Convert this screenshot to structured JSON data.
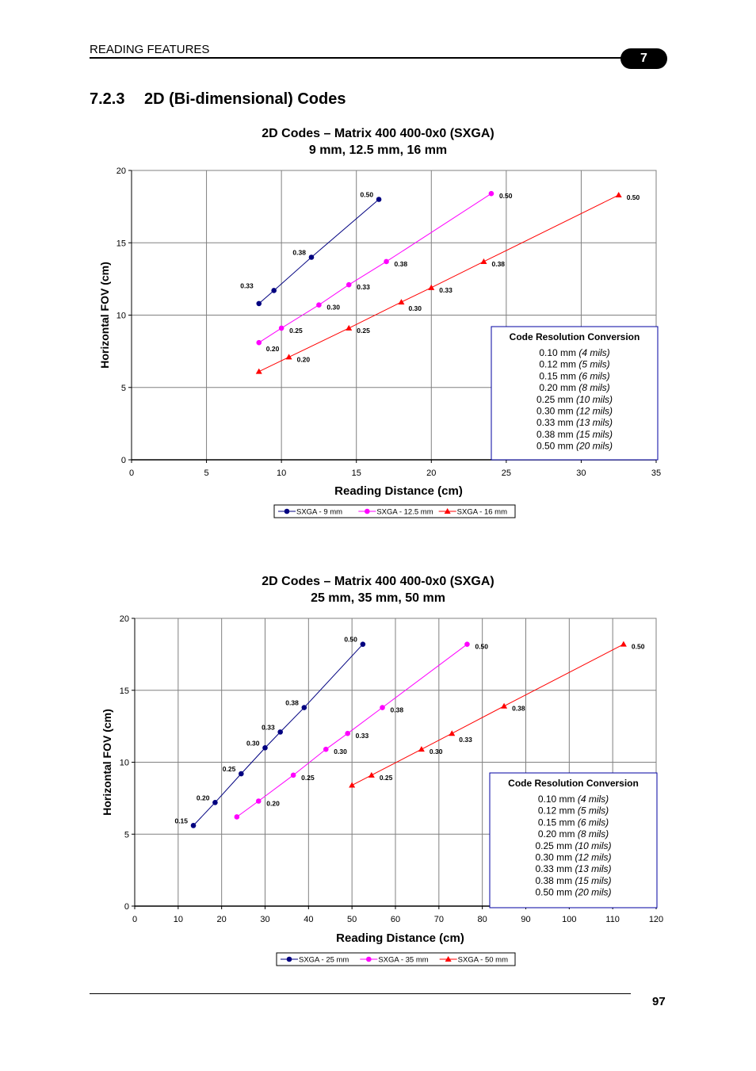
{
  "header": {
    "section": "READING FEATURES",
    "chapter": "7"
  },
  "section": {
    "number": "7.2.3",
    "title": "2D (Bi-dimensional) Codes"
  },
  "footer": {
    "page": "97"
  },
  "chart_data": [
    {
      "type": "line",
      "title": "2D Codes – Matrix 400 400-0x0 (SXGA)",
      "subtitle": "9 mm, 12.5 mm, 16 mm",
      "xlabel": "Reading Distance (cm)",
      "ylabel": "Horizontal FOV (cm)",
      "xlim": [
        0,
        35
      ],
      "ylim": [
        0,
        20
      ],
      "xticks": [
        0,
        5,
        10,
        15,
        20,
        25,
        30,
        35
      ],
      "yticks": [
        0,
        5,
        10,
        15,
        20
      ],
      "grid": true,
      "legend": "bottom",
      "series": [
        {
          "name": "SXGA - 9 mm",
          "color": "#000080",
          "marker": "circle",
          "points": [
            [
              8.5,
              10.8
            ],
            [
              9.5,
              11.7
            ],
            [
              12,
              14
            ],
            [
              16.5,
              18
            ]
          ],
          "labels": [
            {
              "text": "0.33",
              "x": 8.5,
              "y": 11.7,
              "pos": "left"
            },
            {
              "text": "0.38",
              "x": 12,
              "y": 14,
              "pos": "left"
            },
            {
              "text": "0.50",
              "x": 16.5,
              "y": 18,
              "pos": "left"
            }
          ]
        },
        {
          "name": "SXGA - 12.5 mm",
          "color": "#ff00ff",
          "marker": "circle",
          "points": [
            [
              8.5,
              8.1
            ],
            [
              10,
              9.1
            ],
            [
              12.5,
              10.7
            ],
            [
              14.5,
              12.1
            ],
            [
              17,
              13.7
            ],
            [
              24,
              18.4
            ]
          ],
          "labels": [
            {
              "text": "0.20",
              "x": 8.5,
              "y": 8.1,
              "pos": "below-right"
            },
            {
              "text": "0.25",
              "x": 10,
              "y": 9.1,
              "pos": "right"
            },
            {
              "text": "0.30",
              "x": 12.5,
              "y": 10.7,
              "pos": "right"
            },
            {
              "text": "0.33",
              "x": 14.5,
              "y": 12.1,
              "pos": "right"
            },
            {
              "text": "0.38",
              "x": 17,
              "y": 13.7,
              "pos": "right"
            },
            {
              "text": "0.50",
              "x": 24,
              "y": 18.4,
              "pos": "right"
            }
          ]
        },
        {
          "name": "SXGA - 16 mm",
          "color": "#ff0000",
          "marker": "triangle",
          "points": [
            [
              8.5,
              6.1
            ],
            [
              10.5,
              7.1
            ],
            [
              14.5,
              9.1
            ],
            [
              18,
              10.9
            ],
            [
              20,
              11.9
            ],
            [
              23.5,
              13.7
            ],
            [
              32.5,
              18.3
            ]
          ],
          "labels": [
            {
              "text": "0.20",
              "x": 10.5,
              "y": 7.1,
              "pos": "right"
            },
            {
              "text": "0.25",
              "x": 14.5,
              "y": 9.1,
              "pos": "right"
            },
            {
              "text": "0.30",
              "x": 18,
              "y": 10.9,
              "pos": "below-right"
            },
            {
              "text": "0.33",
              "x": 20,
              "y": 11.9,
              "pos": "right"
            },
            {
              "text": "0.38",
              "x": 23.5,
              "y": 13.7,
              "pos": "right"
            },
            {
              "text": "0.50",
              "x": 32.5,
              "y": 18.3,
              "pos": "right"
            }
          ]
        }
      ],
      "conversion_box": {
        "title": "Code Resolution Conversion",
        "rows": [
          {
            "mm": "0.10 mm",
            "mils": "(4 mils)"
          },
          {
            "mm": "0.12 mm",
            "mils": "(5 mils)"
          },
          {
            "mm": "0.15 mm",
            "mils": "(6 mils)"
          },
          {
            "mm": "0.20 mm",
            "mils": "(8 mils)"
          },
          {
            "mm": "0.25 mm",
            "mils": "(10 mils)"
          },
          {
            "mm": "0.30 mm",
            "mils": "(12 mils)"
          },
          {
            "mm": "0.33 mm",
            "mils": "(13 mils)"
          },
          {
            "mm": "0.38 mm",
            "mils": "(15 mils)"
          },
          {
            "mm": "0.50 mm",
            "mils": "(20 mils)"
          }
        ]
      }
    },
    {
      "type": "line",
      "title": "2D Codes – Matrix 400 400-0x0 (SXGA)",
      "subtitle": "25 mm, 35 mm, 50 mm",
      "xlabel": "Reading Distance (cm)",
      "ylabel": "Horizontal FOV (cm)",
      "xlim": [
        0,
        120
      ],
      "ylim": [
        0,
        20
      ],
      "xticks": [
        0,
        10,
        20,
        30,
        40,
        50,
        60,
        70,
        80,
        90,
        100,
        110,
        120
      ],
      "yticks": [
        0,
        5,
        10,
        15,
        20
      ],
      "grid": true,
      "legend": "bottom",
      "series": [
        {
          "name": "SXGA - 25 mm",
          "color": "#000080",
          "marker": "circle",
          "points": [
            [
              13.5,
              5.6
            ],
            [
              18.5,
              7.2
            ],
            [
              24.5,
              9.2
            ],
            [
              30,
              11
            ],
            [
              33.5,
              12.1
            ],
            [
              39,
              13.8
            ],
            [
              52.5,
              18.2
            ]
          ],
          "labels": [
            {
              "text": "0.15",
              "x": 13.5,
              "y": 5.6,
              "pos": "left"
            },
            {
              "text": "0.20",
              "x": 18.5,
              "y": 7.2,
              "pos": "left"
            },
            {
              "text": "0.25",
              "x": 24.5,
              "y": 9.2,
              "pos": "left"
            },
            {
              "text": "0.30",
              "x": 30,
              "y": 11,
              "pos": "left"
            },
            {
              "text": "0.33",
              "x": 33.5,
              "y": 12.1,
              "pos": "left"
            },
            {
              "text": "0.38",
              "x": 39,
              "y": 13.8,
              "pos": "left"
            },
            {
              "text": "0.50",
              "x": 52.5,
              "y": 18.2,
              "pos": "left"
            }
          ]
        },
        {
          "name": "SXGA - 35 mm",
          "color": "#ff00ff",
          "marker": "circle",
          "points": [
            [
              23.5,
              6.2
            ],
            [
              28.5,
              7.3
            ],
            [
              36.5,
              9.1
            ],
            [
              44,
              10.9
            ],
            [
              49,
              12
            ],
            [
              57,
              13.8
            ],
            [
              76.5,
              18.2
            ]
          ],
          "labels": [
            {
              "text": "0.20",
              "x": 28.5,
              "y": 7.3,
              "pos": "right"
            },
            {
              "text": "0.25",
              "x": 36.5,
              "y": 9.1,
              "pos": "right"
            },
            {
              "text": "0.30",
              "x": 44,
              "y": 10.9,
              "pos": "right"
            },
            {
              "text": "0.33",
              "x": 49,
              "y": 12,
              "pos": "right"
            },
            {
              "text": "0.38",
              "x": 57,
              "y": 13.8,
              "pos": "right"
            },
            {
              "text": "0.50",
              "x": 76.5,
              "y": 18.2,
              "pos": "right"
            }
          ]
        },
        {
          "name": "SXGA - 50 mm",
          "color": "#ff0000",
          "marker": "triangle",
          "points": [
            [
              50,
              8.4
            ],
            [
              54.5,
              9.1
            ],
            [
              66,
              10.9
            ],
            [
              73,
              12
            ],
            [
              85,
              13.9
            ],
            [
              112.5,
              18.2
            ]
          ],
          "labels": [
            {
              "text": "0.25",
              "x": 54.5,
              "y": 9.1,
              "pos": "right"
            },
            {
              "text": "0.30",
              "x": 66,
              "y": 10.9,
              "pos": "right"
            },
            {
              "text": "0.33",
              "x": 73,
              "y": 12,
              "pos": "below-right"
            },
            {
              "text": "0.38",
              "x": 85,
              "y": 13.9,
              "pos": "right"
            },
            {
              "text": "0.50",
              "x": 112.5,
              "y": 18.2,
              "pos": "right"
            }
          ]
        }
      ],
      "conversion_box": {
        "title": "Code Resolution Conversion",
        "rows": [
          {
            "mm": "0.10 mm",
            "mils": "(4 mils)"
          },
          {
            "mm": "0.12 mm",
            "mils": "(5 mils)"
          },
          {
            "mm": "0.15 mm",
            "mils": "(6 mils)"
          },
          {
            "mm": "0.20 mm",
            "mils": "(8 mils)"
          },
          {
            "mm": "0.25 mm",
            "mils": "(10 mils)"
          },
          {
            "mm": "0.30 mm",
            "mils": "(12 mils)"
          },
          {
            "mm": "0.33 mm",
            "mils": "(13 mils)"
          },
          {
            "mm": "0.38 mm",
            "mils": "(15 mils)"
          },
          {
            "mm": "0.50 mm",
            "mils": "(20 mils)"
          }
        ]
      }
    }
  ]
}
